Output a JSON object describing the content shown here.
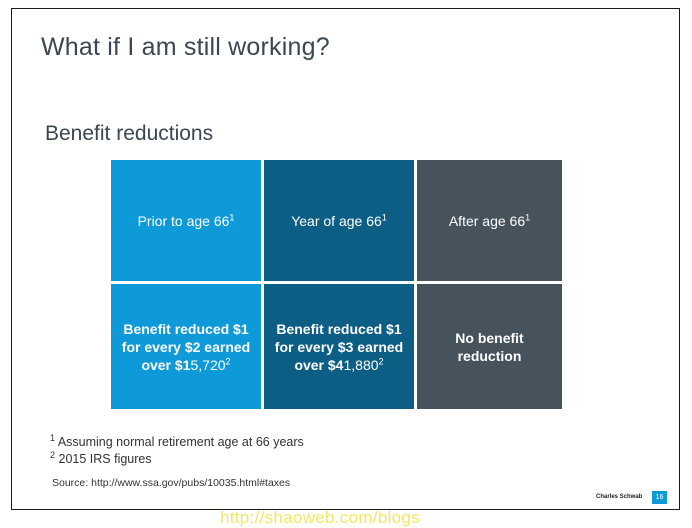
{
  "slide": {
    "title": "What if I am still working?",
    "section_heading": "Benefit reductions",
    "table": {
      "headers": [
        {
          "text": "Prior to age 66",
          "note": "1"
        },
        {
          "text": "Year of age 66",
          "note": "1"
        },
        {
          "text": "After age 66",
          "note": "1"
        }
      ],
      "cells": [
        {
          "line1": "Benefit reduced $1",
          "line2": "for every $2 earned",
          "line3_prefix": "over $1",
          "line3_num": "5,720",
          "note": "2"
        },
        {
          "line1": "Benefit reduced $1",
          "line2": "for every $3 earned",
          "line3_prefix": "over $4",
          "line3_num": "1,880",
          "note": "2"
        },
        {
          "line1": "No benefit",
          "line2": "reduction"
        }
      ]
    },
    "footnotes": [
      {
        "marker": "1",
        "text": "Assuming normal retirement age at 66 years"
      },
      {
        "marker": "2",
        "text": "2015 IRS figures"
      }
    ],
    "source": "Source: http://www.ssa.gov/pubs/10035.html#taxes",
    "brand": "Charles Schwab",
    "page_number": "16"
  },
  "watermark": "http://shaoweb.com/blogs"
}
